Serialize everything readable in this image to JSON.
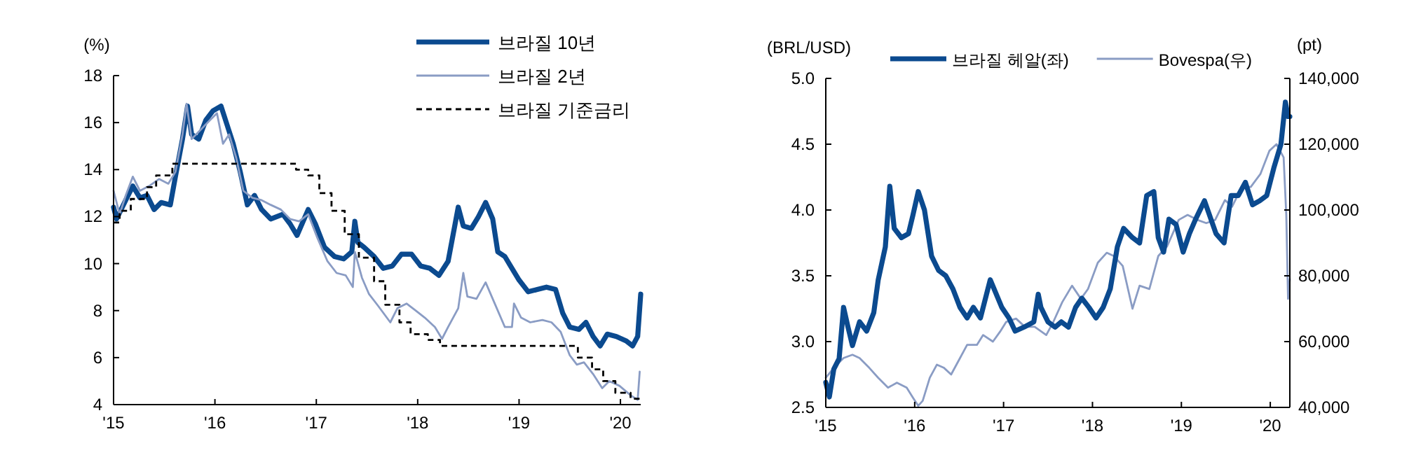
{
  "chart_data": [
    {
      "type": "line",
      "ylabel": "(%)",
      "xlim": [
        2015,
        2020.2
      ],
      "ylim": [
        4,
        18
      ],
      "yticks": [
        4,
        6,
        8,
        10,
        12,
        14,
        16,
        18
      ],
      "xticks": [
        {
          "value": 2015,
          "label": "'15"
        },
        {
          "value": 2016,
          "label": "'16"
        },
        {
          "value": 2017,
          "label": "'17"
        },
        {
          "value": 2018,
          "label": "'18"
        },
        {
          "value": 2019,
          "label": "'19"
        },
        {
          "value": 2020,
          "label": "'20"
        }
      ],
      "legend": "top right",
      "series": [
        {
          "name": "브라질 10년",
          "color": "#0b4a8f",
          "x": [
            2015.0,
            2015.03,
            2015.12,
            2015.19,
            2015.26,
            2015.33,
            2015.4,
            2015.47,
            2015.56,
            2015.61,
            2015.68,
            2015.73,
            2015.77,
            2015.84,
            2015.91,
            2015.98,
            2016.06,
            2016.12,
            2016.18,
            2016.25,
            2016.32,
            2016.39,
            2016.46,
            2016.55,
            2016.67,
            2016.74,
            2016.81,
            2016.88,
            2016.92,
            2016.99,
            2017.08,
            2017.18,
            2017.27,
            2017.35,
            2017.38,
            2017.41,
            2017.47,
            2017.57,
            2017.66,
            2017.75,
            2017.84,
            2017.94,
            2018.03,
            2018.12,
            2018.21,
            2018.3,
            2018.4,
            2018.45,
            2018.53,
            2018.6,
            2018.67,
            2018.74,
            2018.79,
            2018.86,
            2018.93,
            2019.0,
            2019.09,
            2019.18,
            2019.27,
            2019.36,
            2019.43,
            2019.5,
            2019.59,
            2019.66,
            2019.73,
            2019.8,
            2019.87,
            2019.96,
            2020.06,
            2020.12,
            2020.17,
            2020.2
          ],
          "values": [
            12.4,
            11.9,
            12.7,
            13.3,
            12.8,
            12.9,
            12.3,
            12.6,
            12.5,
            13.7,
            15.3,
            16.7,
            15.5,
            15.3,
            16.1,
            16.5,
            16.7,
            15.9,
            15.1,
            13.9,
            12.5,
            12.9,
            12.3,
            11.9,
            12.1,
            11.7,
            11.2,
            11.9,
            12.3,
            11.7,
            10.7,
            10.3,
            10.2,
            10.5,
            11.8,
            10.9,
            10.7,
            10.3,
            9.8,
            9.9,
            10.4,
            10.4,
            9.9,
            9.8,
            9.5,
            10.1,
            12.4,
            11.6,
            11.5,
            12.0,
            12.6,
            11.9,
            10.5,
            10.3,
            9.8,
            9.3,
            8.8,
            8.9,
            9.0,
            8.9,
            7.9,
            7.3,
            7.2,
            7.5,
            6.9,
            6.5,
            7.0,
            6.9,
            6.7,
            6.5,
            6.9,
            8.7
          ]
        },
        {
          "name": "브라질 2년",
          "color": "#8a9cc4",
          "x": [
            2015.0,
            2015.06,
            2015.12,
            2015.19,
            2015.26,
            2015.35,
            2015.45,
            2015.54,
            2015.61,
            2015.68,
            2015.72,
            2015.77,
            2015.86,
            2015.95,
            2016.02,
            2016.08,
            2016.14,
            2016.21,
            2016.28,
            2016.37,
            2016.46,
            2016.55,
            2016.65,
            2016.74,
            2016.83,
            2016.92,
            2017.01,
            2017.11,
            2017.2,
            2017.29,
            2017.36,
            2017.38,
            2017.45,
            2017.52,
            2017.61,
            2017.73,
            2017.8,
            2017.89,
            2017.98,
            2018.07,
            2018.17,
            2018.24,
            2018.3,
            2018.4,
            2018.45,
            2018.49,
            2018.58,
            2018.67,
            2018.76,
            2018.86,
            2018.93,
            2018.95,
            2019.02,
            2019.11,
            2019.23,
            2019.32,
            2019.41,
            2019.5,
            2019.57,
            2019.64,
            2019.73,
            2019.82,
            2019.89,
            2019.99,
            2020.1,
            2020.17,
            2020.19
          ],
          "values": [
            13.1,
            12.1,
            12.9,
            13.7,
            13.1,
            13.3,
            13.6,
            13.4,
            13.9,
            15.5,
            16.8,
            15.3,
            15.7,
            16.1,
            16.4,
            15.1,
            15.5,
            14.5,
            13.1,
            12.8,
            12.7,
            12.5,
            12.3,
            11.9,
            11.8,
            12.1,
            11.1,
            10.1,
            9.6,
            9.5,
            9.0,
            10.5,
            9.4,
            8.7,
            8.2,
            7.5,
            8.1,
            8.3,
            8.0,
            7.7,
            7.3,
            6.8,
            7.3,
            8.1,
            9.6,
            8.6,
            8.5,
            9.2,
            8.3,
            7.3,
            7.3,
            8.3,
            7.7,
            7.5,
            7.6,
            7.5,
            7.1,
            6.1,
            5.7,
            5.8,
            5.3,
            4.7,
            5.0,
            4.8,
            4.4,
            4.2,
            5.4
          ]
        },
        {
          "name": "브라질 기준금리",
          "type": "step",
          "color": "#000000",
          "line_style": "dashed",
          "x": [
            2015.0,
            2015.06,
            2015.17,
            2015.33,
            2015.42,
            2015.58,
            2016.8,
            2016.92,
            2017.03,
            2017.15,
            2017.28,
            2017.42,
            2017.57,
            2017.68,
            2017.82,
            2017.93,
            2018.1,
            2018.22,
            2019.58,
            2019.72,
            2019.83,
            2019.95,
            2020.1,
            2020.2
          ],
          "values": [
            11.75,
            12.25,
            12.75,
            13.25,
            13.75,
            14.25,
            14.0,
            13.75,
            13.0,
            12.25,
            11.25,
            10.25,
            9.25,
            8.25,
            7.5,
            7.0,
            6.75,
            6.5,
            6.0,
            5.5,
            5.0,
            4.5,
            4.25,
            4.25
          ]
        }
      ]
    },
    {
      "type": "line",
      "ylabel": "(BRL/USD)",
      "y2label": "(pt)",
      "xlim": [
        2015,
        2020.22
      ],
      "ylim": [
        2.5,
        5
      ],
      "yticks": [
        2.5,
        {
          "value": 3,
          "label": "3.0"
        },
        3.5,
        {
          "value": 4,
          "label": "4.0"
        },
        4.5,
        {
          "value": 5,
          "label": "5.0"
        }
      ],
      "y2lim": [
        40000,
        140000
      ],
      "y2ticks": [
        {
          "value": 40000,
          "label": "40,000"
        },
        {
          "value": 60000,
          "label": "60,000"
        },
        {
          "value": 80000,
          "label": "80,000"
        },
        {
          "value": 100000,
          "label": "100,000"
        },
        {
          "value": 120000,
          "label": "120,000"
        },
        {
          "value": 140000,
          "label": "140,000"
        }
      ],
      "xticks": [
        {
          "value": 2015,
          "label": "'15"
        },
        {
          "value": 2016,
          "label": "'16"
        },
        {
          "value": 2017,
          "label": "'17"
        },
        {
          "value": 2018,
          "label": "'18"
        },
        {
          "value": 2019,
          "label": "'19"
        },
        {
          "value": 2020,
          "label": "'20"
        }
      ],
      "legend": "top",
      "series": [
        {
          "name": "Bovespa(우)",
          "axis": "y2",
          "color": "#8a9cc4",
          "x": [
            2015.0,
            2015.09,
            2015.2,
            2015.3,
            2015.38,
            2015.49,
            2015.59,
            2015.7,
            2015.8,
            2015.91,
            2015.98,
            2016.04,
            2016.09,
            2016.17,
            2016.25,
            2016.33,
            2016.41,
            2016.51,
            2016.59,
            2016.7,
            2016.77,
            2016.88,
            2016.96,
            2017.03,
            2017.14,
            2017.24,
            2017.35,
            2017.48,
            2017.56,
            2017.66,
            2017.77,
            2017.87,
            2017.95,
            2018.06,
            2018.16,
            2018.24,
            2018.34,
            2018.45,
            2018.53,
            2018.64,
            2018.74,
            2018.84,
            2018.97,
            2019.07,
            2019.18,
            2019.28,
            2019.38,
            2019.49,
            2019.57,
            2019.68,
            2019.78,
            2019.89,
            2019.99,
            2020.07,
            2020.15,
            2020.18,
            2020.2,
            2020.22
          ],
          "values": [
            49000,
            52000,
            55000,
            56000,
            55000,
            52000,
            49000,
            46000,
            47500,
            46000,
            43000,
            40500,
            42000,
            49000,
            53000,
            52000,
            50000,
            55000,
            59000,
            59000,
            62000,
            60000,
            63000,
            66000,
            67000,
            64500,
            64500,
            62000,
            66000,
            72000,
            77000,
            73000,
            76000,
            84000,
            87000,
            86000,
            83000,
            70000,
            77000,
            76000,
            86000,
            89000,
            97000,
            98500,
            97000,
            96000,
            97000,
            103000,
            101000,
            107000,
            107000,
            111000,
            118000,
            120000,
            116000,
            98500,
            73000,
            79000
          ]
        },
        {
          "name": "브라질 헤알(좌)",
          "color": "#0b4a8f",
          "x": [
            2015.0,
            2015.04,
            2015.09,
            2015.15,
            2015.2,
            2015.25,
            2015.3,
            2015.38,
            2015.46,
            2015.54,
            2015.59,
            2015.67,
            2015.72,
            2015.77,
            2015.85,
            2015.93,
            2015.98,
            2016.04,
            2016.11,
            2016.19,
            2016.27,
            2016.35,
            2016.43,
            2016.51,
            2016.59,
            2016.66,
            2016.74,
            2016.85,
            2016.98,
            2017.06,
            2017.13,
            2017.23,
            2017.34,
            2017.39,
            2017.42,
            2017.5,
            2017.58,
            2017.65,
            2017.73,
            2017.81,
            2017.88,
            2017.96,
            2018.04,
            2018.12,
            2018.2,
            2018.28,
            2018.35,
            2018.45,
            2018.53,
            2018.61,
            2018.69,
            2018.74,
            2018.8,
            2018.86,
            2018.94,
            2019.02,
            2019.09,
            2019.16,
            2019.26,
            2019.39,
            2019.48,
            2019.56,
            2019.64,
            2019.72,
            2019.8,
            2019.88,
            2019.96,
            2020.04,
            2020.12,
            2020.17,
            2020.2,
            2020.22
          ],
          "values": [
            2.69,
            2.58,
            2.79,
            2.87,
            3.26,
            3.11,
            2.97,
            3.15,
            3.08,
            3.22,
            3.47,
            3.72,
            4.18,
            3.86,
            3.79,
            3.82,
            3.96,
            4.14,
            4.0,
            3.65,
            3.54,
            3.5,
            3.4,
            3.26,
            3.18,
            3.26,
            3.18,
            3.47,
            3.26,
            3.18,
            3.08,
            3.11,
            3.15,
            3.36,
            3.26,
            3.15,
            3.11,
            3.15,
            3.11,
            3.26,
            3.33,
            3.26,
            3.18,
            3.26,
            3.4,
            3.72,
            3.86,
            3.79,
            3.75,
            4.11,
            4.14,
            3.79,
            3.68,
            3.93,
            3.89,
            3.68,
            3.82,
            3.93,
            4.07,
            3.82,
            3.75,
            4.11,
            4.11,
            4.21,
            4.04,
            4.07,
            4.11,
            4.32,
            4.5,
            4.82,
            4.71,
            4.71
          ]
        }
      ]
    }
  ]
}
